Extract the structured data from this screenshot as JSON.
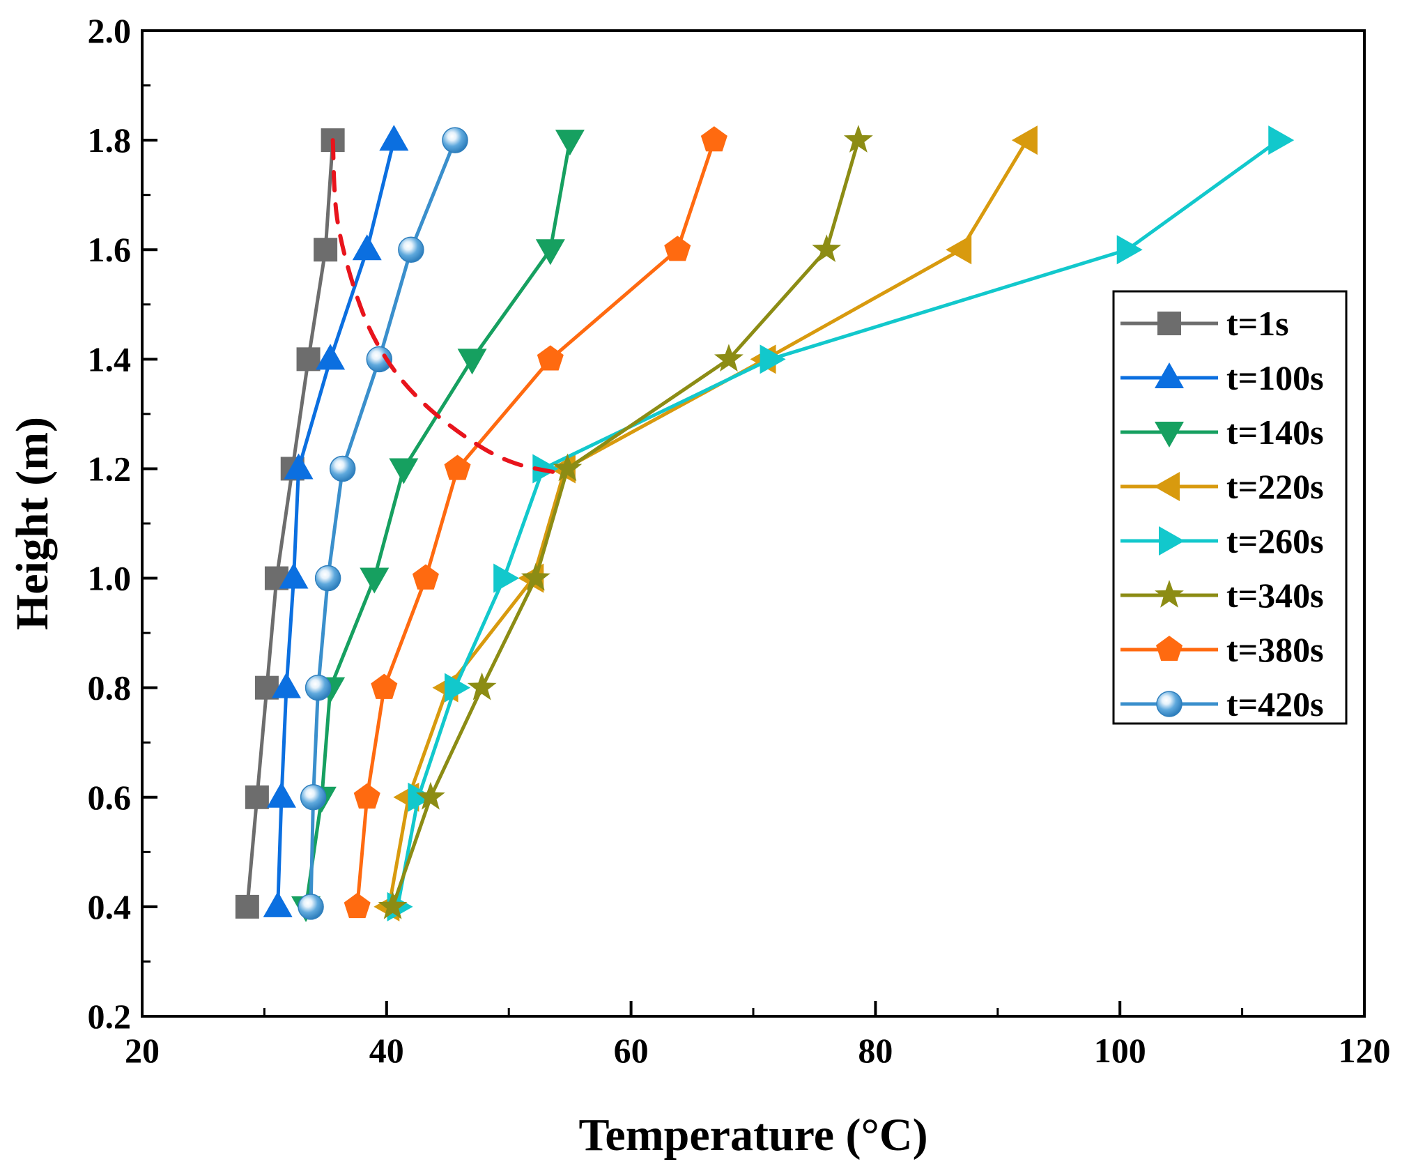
{
  "chart_data": {
    "type": "line",
    "title": "",
    "xlabel": "Temperature (°C)",
    "ylabel": "Height (m)",
    "xlim": [
      20,
      120
    ],
    "ylim": [
      0.2,
      2.0
    ],
    "xticks": [
      "20",
      "40",
      "60",
      "80",
      "100",
      "120"
    ],
    "yticks": [
      "0.2",
      "0.4",
      "0.6",
      "0.8",
      "1.0",
      "1.2",
      "1.4",
      "1.6",
      "1.8",
      "2.0"
    ],
    "x_tick_values": [
      20,
      40,
      60,
      80,
      100,
      120
    ],
    "y_tick_values": [
      0.2,
      0.4,
      0.6,
      0.8,
      1.0,
      1.2,
      1.4,
      1.6,
      1.8,
      2.0
    ],
    "grid": false,
    "legend_position": "right",
    "heights": [
      0.4,
      0.6,
      0.8,
      1.0,
      1.2,
      1.4,
      1.6,
      1.8
    ],
    "series": [
      {
        "name": "t=1s",
        "color": "#6d6d6d",
        "marker": "square",
        "temperatures": [
          28.6,
          29.4,
          30.2,
          31.0,
          32.3,
          33.6,
          35.0,
          35.6
        ]
      },
      {
        "name": "t=100s",
        "color": "#0b6fe0",
        "marker": "triangle-up",
        "temperatures": [
          31.1,
          31.4,
          31.8,
          32.4,
          32.8,
          35.4,
          38.4,
          40.6
        ]
      },
      {
        "name": "t=140s",
        "color": "#16a060",
        "marker": "triangle-down",
        "temperatures": [
          33.4,
          34.7,
          35.4,
          39.0,
          41.4,
          47.0,
          53.4,
          55.0
        ]
      },
      {
        "name": "t=220s",
        "color": "#d89a0e",
        "marker": "triangle-left",
        "temperatures": [
          40.2,
          41.8,
          45.0,
          52.0,
          54.6,
          71.0,
          87.0,
          92.4
        ]
      },
      {
        "name": "t=260s",
        "color": "#12c8cc",
        "marker": "triangle-right",
        "temperatures": [
          40.9,
          42.6,
          45.6,
          49.6,
          52.8,
          71.4,
          100.6,
          113.0
        ]
      },
      {
        "name": "t=340s",
        "color": "#8c8c14",
        "marker": "star",
        "temperatures": [
          40.5,
          43.6,
          47.8,
          52.2,
          54.8,
          68.0,
          76.0,
          78.6
        ]
      },
      {
        "name": "t=380s",
        "color": "#ff6a10",
        "marker": "pentagon",
        "temperatures": [
          37.6,
          38.4,
          39.8,
          43.2,
          45.8,
          53.4,
          63.8,
          66.8
        ]
      },
      {
        "name": "t=420s",
        "color": "#3a8fcc",
        "marker": "sphere",
        "temperatures": [
          33.8,
          34.0,
          34.4,
          35.2,
          36.4,
          39.4,
          42.0,
          45.6
        ]
      }
    ],
    "annotation": {
      "type": "dashed-curve",
      "color": "#e8141c",
      "points": [
        [
          35.6,
          1.8
        ],
        [
          36.0,
          1.65
        ],
        [
          37.8,
          1.5
        ],
        [
          40.0,
          1.4
        ],
        [
          43.0,
          1.32
        ],
        [
          47.0,
          1.25
        ],
        [
          50.5,
          1.21
        ],
        [
          54.7,
          1.19
        ]
      ]
    }
  }
}
